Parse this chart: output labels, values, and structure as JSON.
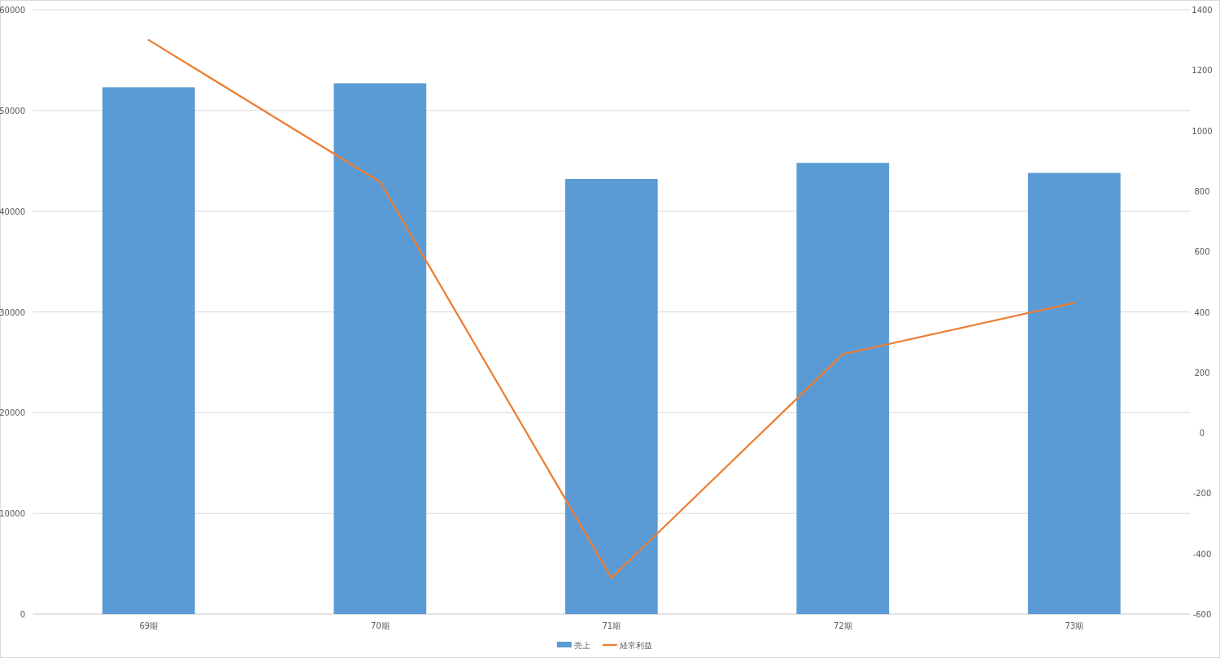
{
  "chart_data": {
    "type": "bar",
    "categories": [
      "69期",
      "70期",
      "71期",
      "72期",
      "73期"
    ],
    "series": [
      {
        "name": "売上",
        "color": "#5b9bd5",
        "values": [
          52300,
          52700,
          43200,
          44800,
          43800
        ]
      },
      {
        "name": "経常利益",
        "type": "line",
        "axis": "y2",
        "color": "#ed7d31",
        "values": [
          1300,
          830,
          -480,
          260,
          430
        ]
      }
    ],
    "ylim": [
      0,
      60000
    ],
    "yticks": [
      0,
      10000,
      20000,
      30000,
      40000,
      50000,
      60000
    ],
    "y2lim": [
      -600,
      1400
    ],
    "y2ticks": [
      -600,
      -400,
      -200,
      0,
      200,
      400,
      600,
      800,
      1000,
      1200,
      1400
    ],
    "grid": "y",
    "legend": "bottom",
    "marker": "none"
  }
}
